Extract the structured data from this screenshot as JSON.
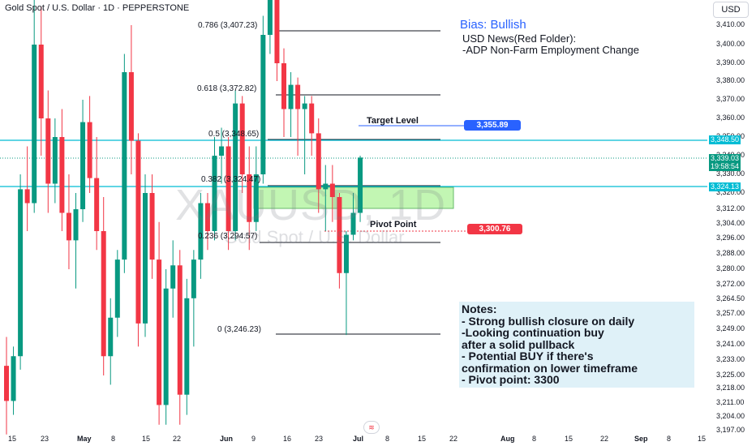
{
  "header": {
    "title": "Gold Spot / U.S. Dollar · 1D · PEPPERSTONE"
  },
  "currency_button": "USD",
  "watermark": {
    "symbol": "XAUUSD, 1D",
    "name": "Gold Spot / U.S. Dollar"
  },
  "fib_levels": [
    {
      "label": "0.786 (3,407.23)",
      "price": 3407.23
    },
    {
      "label": "0.618 (3,372.82)",
      "price": 3372.82
    },
    {
      "label": "0.5 (3,348.65)",
      "price": 3348.65
    },
    {
      "label": "0.382 (3,324.47)",
      "price": 3324.47
    },
    {
      "label": "0.236 (3,294.57)",
      "price": 3294.57
    },
    {
      "label": "0 (3,246.23)",
      "price": 3246.23
    }
  ],
  "annotations": {
    "target_label": "Target Level",
    "target_price": "3,355.89",
    "pivot_label": "Pivot Point",
    "pivot_price": "3,300.76",
    "bias": "Bias: Bullish",
    "news_line1": "USD News(Red Folder):",
    "news_line2": "-ADP Non-Farm Employment Change",
    "notes": [
      "Notes:",
      "- Strong bullish closure on daily",
      "-Looking continuation buy",
      "after a solid pullback",
      "- Potential BUY if there's",
      "confirmation on lower timeframe",
      "- Pivot point: 3300"
    ]
  },
  "axis_tags": {
    "level_upper": "3,348.50",
    "last_price": "3,339.03",
    "countdown": "19:58:54",
    "level_lower": "3,324.13"
  },
  "colors": {
    "up": "#089981",
    "down": "#f23645",
    "level": "#00bcd4",
    "zone": "#b8f5a6",
    "target": "#2962ff",
    "pivot": "#f23645"
  },
  "chart_data": {
    "type": "candlestick",
    "title": "Gold Spot / U.S. Dollar · 1D · PEPPERSTONE",
    "symbol": "XAUUSD",
    "timeframe": "1D",
    "y_ticks": [
      "3,410.00",
      "3,400.00",
      "3,390.00",
      "3,380.00",
      "3,370.00",
      "3,360.00",
      "3,350.00",
      "3,340.00",
      "3,330.00",
      "3,320.00",
      "3,312.00",
      "3,304.00",
      "3,296.00",
      "3,288.00",
      "3,280.00",
      "3,272.00",
      "3,264.50",
      "3,257.00",
      "3,249.00",
      "3,241.00",
      "3,233.00",
      "3,225.00",
      "3,218.00",
      "3,211.00",
      "3,204.00",
      "3,197.00"
    ],
    "x_ticks": [
      {
        "label": "15",
        "bold": false
      },
      {
        "label": "23",
        "bold": false
      },
      {
        "label": "May",
        "bold": true
      },
      {
        "label": "8",
        "bold": false
      },
      {
        "label": "15",
        "bold": false
      },
      {
        "label": "22",
        "bold": false
      },
      {
        "label": "Jun",
        "bold": true
      },
      {
        "label": "9",
        "bold": false
      },
      {
        "label": "16",
        "bold": false
      },
      {
        "label": "23",
        "bold": false
      },
      {
        "label": "Jul",
        "bold": true
      },
      {
        "label": "8",
        "bold": false
      },
      {
        "label": "15",
        "bold": false
      },
      {
        "label": "22",
        "bold": false
      },
      {
        "label": "Aug",
        "bold": true
      },
      {
        "label": "8",
        "bold": false
      },
      {
        "label": "15",
        "bold": false
      },
      {
        "label": "22",
        "bold": false
      },
      {
        "label": "Sep",
        "bold": true
      },
      {
        "label": "8",
        "bold": false
      },
      {
        "label": "15",
        "bold": false
      }
    ],
    "candles": [
      [
        3230,
        3245,
        3195,
        3212
      ],
      [
        3212,
        3240,
        3205,
        3235
      ],
      [
        3235,
        3330,
        3228,
        3322
      ],
      [
        3322,
        3345,
        3300,
        3315
      ],
      [
        3315,
        3430,
        3310,
        3400
      ],
      [
        3400,
        3420,
        3340,
        3360
      ],
      [
        3360,
        3375,
        3310,
        3325
      ],
      [
        3325,
        3360,
        3315,
        3350
      ],
      [
        3350,
        3365,
        3300,
        3310
      ],
      [
        3310,
        3330,
        3280,
        3295
      ],
      [
        3295,
        3320,
        3270,
        3312
      ],
      [
        3312,
        3370,
        3305,
        3358
      ],
      [
        3358,
        3372,
        3320,
        3328
      ],
      [
        3328,
        3350,
        3290,
        3300
      ],
      [
        3300,
        3318,
        3225,
        3235
      ],
      [
        3235,
        3265,
        3220,
        3255
      ],
      [
        3255,
        3290,
        3245,
        3285
      ],
      [
        3285,
        3395,
        3278,
        3385
      ],
      [
        3385,
        3410,
        3330,
        3348
      ],
      [
        3348,
        3352,
        3240,
        3252
      ],
      [
        3252,
        3330,
        3245,
        3320
      ],
      [
        3320,
        3330,
        3275,
        3285
      ],
      [
        3285,
        3305,
        3200,
        3210
      ],
      [
        3210,
        3280,
        3200,
        3270
      ],
      [
        3270,
        3295,
        3255,
        3282
      ],
      [
        3282,
        3290,
        3200,
        3215
      ],
      [
        3215,
        3275,
        3205,
        3265
      ],
      [
        3265,
        3290,
        3240,
        3285
      ],
      [
        3285,
        3320,
        3275,
        3315
      ],
      [
        3315,
        3320,
        3290,
        3300
      ],
      [
        3300,
        3350,
        3295,
        3340
      ],
      [
        3340,
        3355,
        3325,
        3345
      ],
      [
        3345,
        3350,
        3290,
        3300
      ],
      [
        3300,
        3375,
        3295,
        3368
      ],
      [
        3368,
        3372,
        3320,
        3330
      ],
      [
        3330,
        3345,
        3290,
        3305
      ],
      [
        3305,
        3345,
        3300,
        3330
      ],
      [
        3330,
        3415,
        3325,
        3405
      ],
      [
        3405,
        3455,
        3395,
        3425
      ],
      [
        3425,
        3430,
        3380,
        3390
      ],
      [
        3390,
        3398,
        3350,
        3365
      ],
      [
        3365,
        3385,
        3350,
        3378
      ],
      [
        3378,
        3382,
        3340,
        3365
      ],
      [
        3365,
        3372,
        3330,
        3368
      ],
      [
        3368,
        3372,
        3340,
        3352
      ],
      [
        3352,
        3360,
        3310,
        3322
      ],
      [
        3322,
        3335,
        3300,
        3325
      ],
      [
        3325,
        3335,
        3305,
        3318
      ],
      [
        3318,
        3320,
        3270,
        3278
      ],
      [
        3278,
        3300,
        3246,
        3298
      ],
      [
        3298,
        3320,
        3295,
        3310
      ],
      [
        3310,
        3340,
        3305,
        3339
      ]
    ],
    "ylim": [
      3197,
      3415
    ]
  }
}
